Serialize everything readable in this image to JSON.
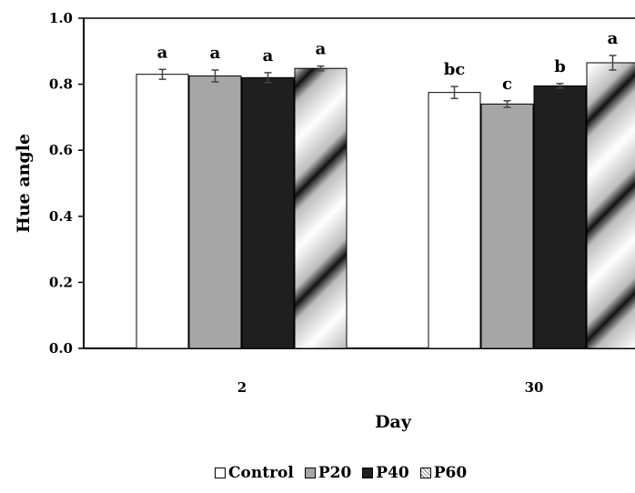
{
  "chart_data": {
    "type": "bar",
    "xlabel": "Day",
    "ylabel": "Hue angle",
    "ylim": [
      0.0,
      1.0
    ],
    "yticks": [
      "0.0",
      "0.2",
      "0.4",
      "0.6",
      "0.8",
      "1.0"
    ],
    "categories": [
      "2",
      "30"
    ],
    "grid": false,
    "legend_position": "bottom",
    "series": [
      {
        "name": "Control",
        "values": [
          0.83,
          0.775
        ],
        "errors": [
          0.015,
          0.018
        ],
        "letters": [
          "a",
          "bc"
        ],
        "color": "#ffffff"
      },
      {
        "name": "P20",
        "values": [
          0.825,
          0.74
        ],
        "errors": [
          0.018,
          0.01
        ],
        "letters": [
          "a",
          "c"
        ],
        "color": "#a6a6a6"
      },
      {
        "name": "P40",
        "values": [
          0.82,
          0.795
        ],
        "errors": [
          0.015,
          0.007
        ],
        "letters": [
          "a",
          "b"
        ],
        "color": "#1f1f1f"
      },
      {
        "name": "P60",
        "values": [
          0.848,
          0.865
        ],
        "errors": [
          0.007,
          0.022
        ],
        "letters": [
          "a",
          "a"
        ],
        "color": "gradient-hatch"
      }
    ]
  }
}
